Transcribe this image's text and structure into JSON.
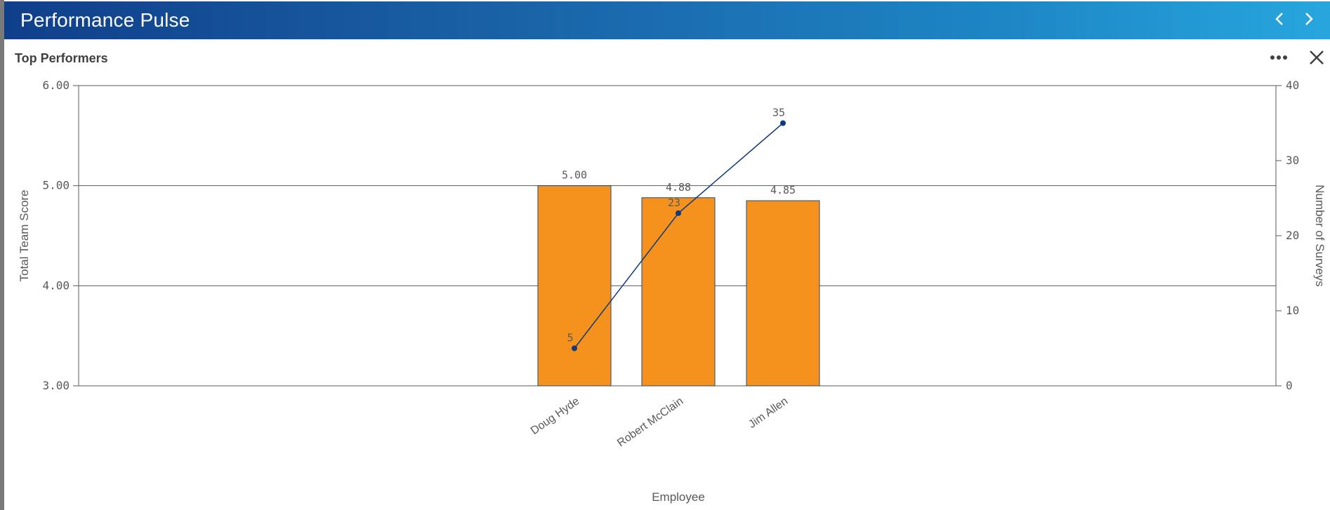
{
  "app": {
    "title": "Performance Pulse"
  },
  "panel": {
    "title": "Top Performers"
  },
  "icons": {
    "prev": "chevron-left-icon",
    "next": "chevron-right-icon",
    "more": "more-horizontal-icon",
    "close": "close-icon"
  },
  "colors": {
    "header_start": "#103f8a",
    "header_end": "#27a6dd",
    "bar_fill": "#f5921e",
    "bar_stroke": "#1f4e79",
    "line": "#0f3a7d"
  },
  "chart_data": {
    "type": "bar",
    "title": "",
    "xlabel": "Employee",
    "ylabel": "Total Team Score",
    "y2label": "Number of Surveys",
    "categories": [
      "Doug Hyde",
      "Robert McClain",
      "Jim Allen"
    ],
    "ylim": [
      3,
      6
    ],
    "yticks": [
      "3.00",
      "4.00",
      "5.00",
      "6.00"
    ],
    "y2lim": [
      0,
      40
    ],
    "y2ticks": [
      "0",
      "10",
      "20",
      "30",
      "40"
    ],
    "grid": true,
    "series": [
      {
        "type": "bar",
        "axis": "left",
        "values": [
          5.0,
          4.88,
          4.85
        ],
        "labels": [
          "5.00",
          "4.88",
          "4.85"
        ]
      },
      {
        "type": "line",
        "axis": "right",
        "values": [
          5,
          23,
          35
        ],
        "labels": [
          "5",
          "23",
          "35"
        ]
      }
    ]
  }
}
